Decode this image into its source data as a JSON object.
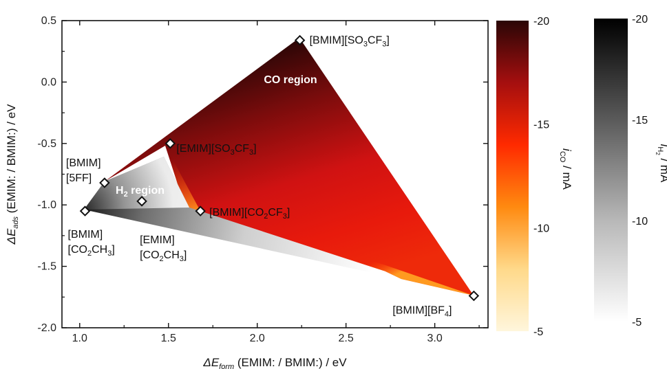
{
  "chart_data": {
    "type": "scatter",
    "xlabel": {
      "prefix": "ΔE",
      "sub": "form",
      "suffix": " (EMIM: / BMIM:) / eV"
    },
    "ylabel": {
      "prefix": "ΔE",
      "sub": "ads",
      "suffix": " (EMIM: / BMIM:) / eV"
    },
    "xlim": [
      0.9,
      3.3
    ],
    "ylim": [
      -2.0,
      0.5
    ],
    "x_ticks": [
      1.0,
      1.5,
      2.0,
      2.5,
      3.0
    ],
    "x_tick_labels": [
      "1.0",
      "1.5",
      "2.0",
      "2.5",
      "3.0"
    ],
    "y_ticks": [
      0.5,
      0.0,
      -0.5,
      -1.0,
      -1.5,
      -2.0
    ],
    "y_tick_labels": [
      "0.5",
      "0.0",
      "-0.5",
      "-1.0",
      "-1.5",
      "-2.0"
    ],
    "points": [
      {
        "id": "p_bmim_so3cf3",
        "x": 2.24,
        "y": 0.34,
        "label_lines": [
          [
            [
              "[BMIM][SO",
              ""
            ],
            [
              "3",
              "sub"
            ],
            [
              "CF",
              ""
            ],
            [
              "3",
              "sub"
            ],
            [
              "]",
              ""
            ]
          ]
        ]
      },
      {
        "id": "p_emim_so3cf3",
        "x": 1.51,
        "y": -0.5,
        "label_lines": [
          [
            [
              "[EMIM][SO",
              ""
            ],
            [
              "3",
              "sub"
            ],
            [
              "CF",
              ""
            ],
            [
              "3",
              "sub"
            ],
            [
              "]",
              ""
            ]
          ]
        ]
      },
      {
        "id": "p_bmim_5ff",
        "x": 1.14,
        "y": -0.82,
        "label_lines": [
          [
            [
              "[BMIM]",
              ""
            ]
          ],
          [
            [
              "[5FF]",
              ""
            ]
          ]
        ]
      },
      {
        "id": "p_emim_co2ch3",
        "x": 1.35,
        "y": -0.97,
        "label_lines": [
          [
            [
              "[EMIM]",
              ""
            ]
          ],
          [
            [
              "[CO",
              ""
            ],
            [
              "2",
              "sub"
            ],
            [
              "CH",
              ""
            ],
            [
              "3",
              "sub"
            ],
            [
              "]",
              ""
            ]
          ]
        ]
      },
      {
        "id": "p_bmim_co2cf3",
        "x": 1.68,
        "y": -1.05,
        "label_lines": [
          [
            [
              "[BMIM][CO",
              ""
            ],
            [
              "2",
              "sub"
            ],
            [
              "CF",
              ""
            ],
            [
              "3",
              "sub"
            ],
            [
              "]",
              ""
            ]
          ]
        ]
      },
      {
        "id": "p_bmim_co2ch3",
        "x": 1.03,
        "y": -1.05,
        "label_lines": [
          [
            [
              "[BMIM]",
              ""
            ]
          ],
          [
            [
              "[CO",
              ""
            ],
            [
              "2",
              "sub"
            ],
            [
              "CH",
              ""
            ],
            [
              "3",
              "sub"
            ],
            [
              "]",
              ""
            ]
          ]
        ]
      },
      {
        "id": "p_bmim_bf4",
        "x": 3.22,
        "y": -1.74,
        "label_lines": [
          [
            [
              "[BMIM][BF",
              ""
            ],
            [
              "4",
              "sub"
            ],
            [
              "]",
              ""
            ]
          ]
        ]
      }
    ],
    "regions": {
      "co_label": "CO region",
      "h2_label_parts": [
        [
          "H",
          ""
        ],
        [
          "2",
          "sub"
        ],
        [
          " region",
          ""
        ]
      ]
    },
    "colorbars": [
      {
        "id": "co",
        "label_parts": [
          [
            "i",
            "italic"
          ],
          [
            "CO",
            "sub"
          ],
          [
            " / mA",
            ""
          ]
        ],
        "range": [
          -20,
          -5
        ],
        "ticks": [
          -20,
          -15,
          -10,
          -5
        ],
        "tick_labels": [
          "-20",
          "-15",
          "-10",
          "-5"
        ],
        "colors_top_to_bottom": [
          "#2a0606",
          "#a50f0f",
          "#ff2a00",
          "#ff8a10",
          "#ffd98a",
          "#fff6dc"
        ]
      },
      {
        "id": "h2",
        "label_parts": [
          [
            "i",
            "italic"
          ],
          [
            "H",
            "sub"
          ],
          [
            "2",
            "subsub"
          ],
          [
            " / mA",
            ""
          ]
        ],
        "range": [
          -20,
          -5
        ],
        "ticks": [
          -20,
          -15,
          -10,
          -5
        ],
        "tick_labels": [
          "-20",
          "-15",
          "-10",
          "-5"
        ],
        "colors_top_to_bottom": [
          "#000000",
          "#5a5a5a",
          "#b8b8b8",
          "#ffffff"
        ]
      }
    ]
  }
}
